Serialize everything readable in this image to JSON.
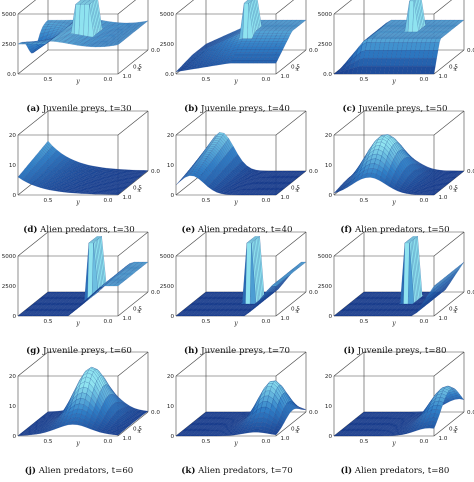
{
  "figure": {
    "panels": [
      {
        "id": "a",
        "letter": "(a)",
        "caption": "Juvenile preys, t=30",
        "kind": "prey",
        "zticks": [
          "5000",
          "2500",
          "0.0"
        ],
        "yticks": [
          "0.5",
          "0.0"
        ],
        "xticks": [
          "0.5",
          "1.0"
        ],
        "right_tick": "0.0",
        "shape": "prey30"
      },
      {
        "id": "b",
        "letter": "(b)",
        "caption": "Juvenile preys, t=40",
        "kind": "prey",
        "zticks": [
          "5000",
          "2500",
          "0.0"
        ],
        "yticks": [
          "0.5",
          "0.0"
        ],
        "xticks": [
          "0.5",
          "1.0"
        ],
        "right_tick": "0.0",
        "shape": "prey40"
      },
      {
        "id": "c",
        "letter": "(c)",
        "caption": "Juvenile preys, t=50",
        "kind": "prey",
        "zticks": [
          "5000",
          "2500",
          "0.0"
        ],
        "yticks": [
          "0.5",
          "0.0"
        ],
        "xticks": [
          "0.5",
          "1.0"
        ],
        "right_tick": "0.0",
        "shape": "prey50"
      },
      {
        "id": "d",
        "letter": "(d)",
        "caption": "Alien predators, t=30",
        "kind": "pred",
        "zticks": [
          "20",
          "10",
          "0"
        ],
        "yticks": [
          "0.5",
          "0.0"
        ],
        "xticks": [
          "0.5",
          "1.0"
        ],
        "right_tick": "0.0",
        "shape": "pred30"
      },
      {
        "id": "e",
        "letter": "(e)",
        "caption": "Alien predators, t=40",
        "kind": "pred",
        "zticks": [
          "20",
          "10",
          "0"
        ],
        "yticks": [
          "0.5",
          "0.0"
        ],
        "xticks": [
          "0.5",
          "1.0"
        ],
        "right_tick": "0.0",
        "shape": "pred40"
      },
      {
        "id": "f",
        "letter": "(f)",
        "caption": "Alien predators, t=50",
        "kind": "pred",
        "zticks": [
          "20",
          "10",
          "0"
        ],
        "yticks": [
          "0.5",
          "0.0"
        ],
        "xticks": [
          "0.5",
          "1.0"
        ],
        "right_tick": "0.0",
        "shape": "pred50"
      },
      {
        "id": "g",
        "letter": "(g)",
        "caption": "Juvenile preys, t=60",
        "kind": "prey",
        "zticks": [
          "5000",
          "2500",
          "0"
        ],
        "yticks": [
          "0.5",
          "0.0"
        ],
        "xticks": [
          "0.5",
          "1.0"
        ],
        "right_tick": "0.0",
        "shape": "prey60"
      },
      {
        "id": "h",
        "letter": "(h)",
        "caption": "Juvenile preys, t=70",
        "kind": "prey",
        "zticks": [
          "5000",
          "2500",
          "0"
        ],
        "yticks": [
          "0.5",
          "0.0"
        ],
        "xticks": [
          "0.5",
          "1.0"
        ],
        "right_tick": "0.0",
        "shape": "prey70"
      },
      {
        "id": "i",
        "letter": "(i)",
        "caption": "Juvenile preys, t=80",
        "kind": "prey",
        "zticks": [
          "5000",
          "2500",
          "0"
        ],
        "yticks": [
          "0.5",
          "0.0"
        ],
        "xticks": [
          "0.5",
          "1.0"
        ],
        "right_tick": "0.0",
        "shape": "prey80"
      },
      {
        "id": "j",
        "letter": "(j)",
        "caption": "Alien predators, t=60",
        "kind": "pred",
        "zticks": [
          "20",
          "10",
          "0"
        ],
        "yticks": [
          "0.5",
          "0.0"
        ],
        "xticks": [
          "0.5",
          "1.0"
        ],
        "right_tick": "0.0",
        "shape": "pred60"
      },
      {
        "id": "k",
        "letter": "(k)",
        "caption": "Alien predators, t=70",
        "kind": "pred",
        "zticks": [
          "20",
          "10",
          "0"
        ],
        "yticks": [
          "0.5",
          "0.0"
        ],
        "xticks": [
          "0.5",
          "1.0"
        ],
        "right_tick": "0.0",
        "shape": "pred70"
      },
      {
        "id": "l",
        "letter": "(l)",
        "caption": "Alien predators, t=80",
        "kind": "pred",
        "zticks": [
          "20",
          "10",
          "0"
        ],
        "yticks": [
          "0.5",
          "0.0"
        ],
        "xticks": [
          "0.5",
          "1.0"
        ],
        "right_tick": "0.0",
        "shape": "pred80"
      }
    ],
    "axis_labels": {
      "x": "x",
      "y": "y"
    },
    "colors": {
      "surface_dark": "#1a3f8f",
      "surface_mid": "#2f7fc7",
      "surface_light": "#8fe3f0",
      "box": "#444444",
      "floor": "#2a4ea8"
    }
  }
}
